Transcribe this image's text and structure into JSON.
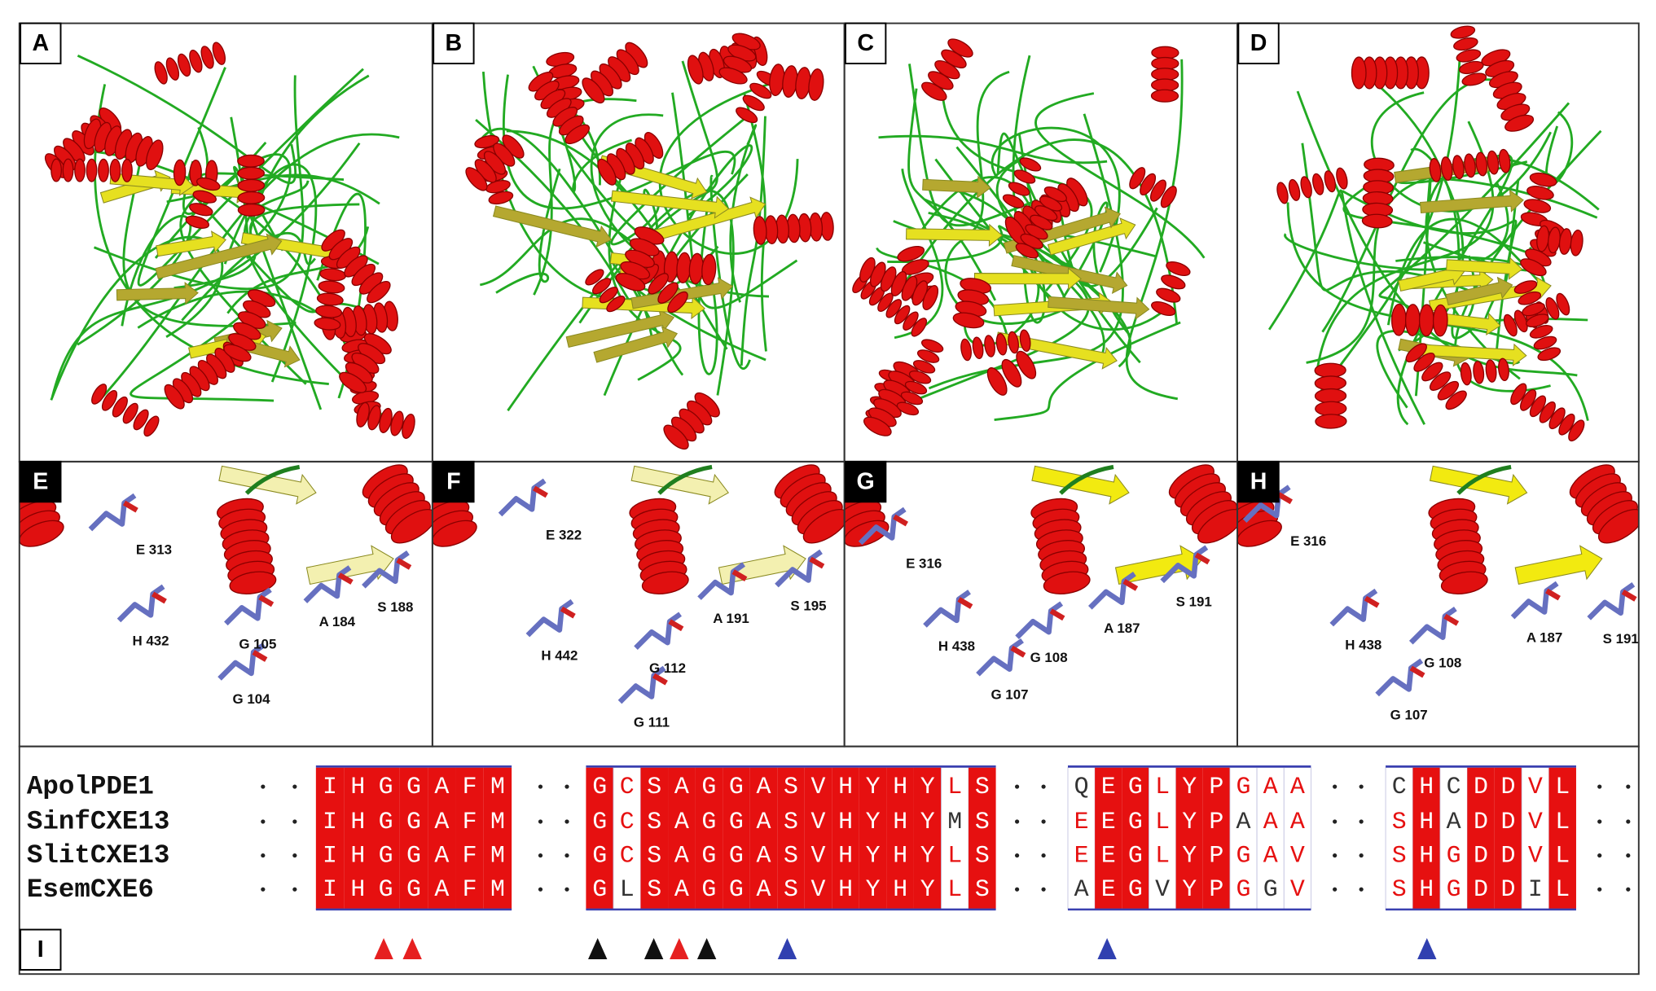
{
  "panels": [
    {
      "label": "A"
    },
    {
      "label": "B"
    },
    {
      "label": "C"
    },
    {
      "label": "D"
    },
    {
      "label": "E",
      "residues": [
        "E 313",
        "H 432",
        "G 105",
        "A 184",
        "S 188",
        "G 104"
      ]
    },
    {
      "label": "F",
      "residues": [
        "E 322",
        "H 442",
        "A 191",
        "S 195",
        "G 112",
        "G 111"
      ]
    },
    {
      "label": "G",
      "residues": [
        "E 316",
        "H 438",
        "A 187",
        "S 191",
        "G 108",
        "G 107"
      ]
    },
    {
      "label": "H",
      "residues": [
        "E 316",
        "H 438",
        "A 187",
        "S 191",
        "G 108",
        "G 107"
      ]
    },
    {
      "label": "I"
    }
  ],
  "alignment": {
    "rows": [
      {
        "name": "ApolPDE1",
        "blocks": [
          [
            "I",
            "H",
            "G",
            "G",
            "A",
            "F",
            "M"
          ],
          [
            "G",
            "C",
            "S",
            "A",
            "G",
            "G",
            "A",
            "S",
            "V",
            "H",
            "Y",
            "H",
            "Y",
            "L",
            "S"
          ],
          [
            "Q",
            "E",
            "G",
            "L",
            "Y",
            "P",
            "G",
            "A",
            "A"
          ],
          [
            "C",
            "H",
            "C",
            "D",
            "D",
            "V",
            "L"
          ]
        ]
      },
      {
        "name": "SinfCXE13",
        "blocks": [
          [
            "I",
            "H",
            "G",
            "G",
            "A",
            "F",
            "M"
          ],
          [
            "G",
            "C",
            "S",
            "A",
            "G",
            "G",
            "A",
            "S",
            "V",
            "H",
            "Y",
            "H",
            "Y",
            "M",
            "S"
          ],
          [
            "E",
            "E",
            "G",
            "L",
            "Y",
            "P",
            "A",
            "A",
            "A"
          ],
          [
            "S",
            "H",
            "A",
            "D",
            "D",
            "V",
            "L"
          ]
        ]
      },
      {
        "name": "SlitCXE13",
        "blocks": [
          [
            "I",
            "H",
            "G",
            "G",
            "A",
            "F",
            "M"
          ],
          [
            "G",
            "C",
            "S",
            "A",
            "G",
            "G",
            "A",
            "S",
            "V",
            "H",
            "Y",
            "H",
            "Y",
            "L",
            "S"
          ],
          [
            "E",
            "E",
            "G",
            "L",
            "Y",
            "P",
            "G",
            "A",
            "V"
          ],
          [
            "S",
            "H",
            "G",
            "D",
            "D",
            "V",
            "L"
          ]
        ]
      },
      {
        "name": "EsemCXE6",
        "blocks": [
          [
            "I",
            "H",
            "G",
            "G",
            "A",
            "F",
            "M"
          ],
          [
            "G",
            "L",
            "S",
            "A",
            "G",
            "G",
            "A",
            "S",
            "V",
            "H",
            "Y",
            "H",
            "Y",
            "L",
            "S"
          ],
          [
            "A",
            "E",
            "G",
            "V",
            "Y",
            "P",
            "G",
            "G",
            "V"
          ],
          [
            "S",
            "H",
            "G",
            "D",
            "D",
            "I",
            "L"
          ]
        ]
      }
    ]
  }
}
